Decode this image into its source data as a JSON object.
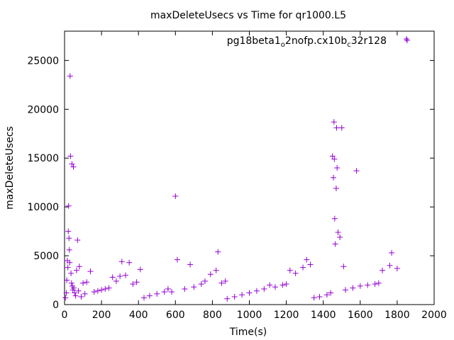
{
  "chart_data": {
    "type": "scatter",
    "title": "maxDeleteUsecs vs Time for qr1000.L5",
    "xlabel": "Time(s)",
    "ylabel": "maxDeleteUsecs",
    "xlim": [
      0,
      2000
    ],
    "ylim": [
      0,
      28000
    ],
    "xticks": [
      0,
      200,
      400,
      600,
      800,
      1000,
      1200,
      1400,
      1600,
      1800,
      2000
    ],
    "yticks": [
      0,
      5000,
      10000,
      15000,
      20000,
      25000
    ],
    "grid": false,
    "legend_position": "top-right",
    "color": "#9400d3",
    "series": [
      {
        "name_parts": [
          "pg18beta1",
          "o",
          "2nofp.cx10b",
          "c",
          "32r128"
        ],
        "points": [
          [
            5,
            700
          ],
          [
            10,
            1200
          ],
          [
            12,
            2500
          ],
          [
            15,
            4500
          ],
          [
            18,
            3800
          ],
          [
            20,
            7500
          ],
          [
            22,
            10100
          ],
          [
            24,
            6800
          ],
          [
            26,
            5600
          ],
          [
            28,
            4300
          ],
          [
            30,
            23400
          ],
          [
            32,
            15200
          ],
          [
            35,
            3200
          ],
          [
            38,
            2200
          ],
          [
            40,
            14400
          ],
          [
            42,
            1900
          ],
          [
            45,
            1500
          ],
          [
            48,
            14100
          ],
          [
            50,
            1700
          ],
          [
            55,
            1200
          ],
          [
            60,
            900
          ],
          [
            65,
            3500
          ],
          [
            70,
            6600
          ],
          [
            75,
            1400
          ],
          [
            80,
            3900
          ],
          [
            90,
            800
          ],
          [
            100,
            2200
          ],
          [
            110,
            1100
          ],
          [
            120,
            2300
          ],
          [
            140,
            3400
          ],
          [
            160,
            1300
          ],
          [
            180,
            1400
          ],
          [
            200,
            1500
          ],
          [
            220,
            1600
          ],
          [
            240,
            1700
          ],
          [
            260,
            2800
          ],
          [
            280,
            2400
          ],
          [
            300,
            2900
          ],
          [
            310,
            4400
          ],
          [
            330,
            3000
          ],
          [
            350,
            4300
          ],
          [
            370,
            2100
          ],
          [
            390,
            2300
          ],
          [
            410,
            3600
          ],
          [
            430,
            700
          ],
          [
            460,
            900
          ],
          [
            500,
            1100
          ],
          [
            540,
            1300
          ],
          [
            560,
            1600
          ],
          [
            580,
            1300
          ],
          [
            600,
            11100
          ],
          [
            610,
            4600
          ],
          [
            650,
            1600
          ],
          [
            680,
            4100
          ],
          [
            700,
            1800
          ],
          [
            740,
            2100
          ],
          [
            760,
            2400
          ],
          [
            790,
            3100
          ],
          [
            820,
            3500
          ],
          [
            830,
            5400
          ],
          [
            850,
            2200
          ],
          [
            870,
            2400
          ],
          [
            880,
            600
          ],
          [
            920,
            800
          ],
          [
            960,
            1000
          ],
          [
            1000,
            1200
          ],
          [
            1040,
            1400
          ],
          [
            1080,
            1600
          ],
          [
            1110,
            2000
          ],
          [
            1140,
            1800
          ],
          [
            1180,
            2000
          ],
          [
            1200,
            2100
          ],
          [
            1220,
            3500
          ],
          [
            1250,
            3200
          ],
          [
            1290,
            3800
          ],
          [
            1310,
            4600
          ],
          [
            1330,
            4100
          ],
          [
            1350,
            700
          ],
          [
            1380,
            800
          ],
          [
            1420,
            1000
          ],
          [
            1440,
            1200
          ],
          [
            1450,
            15200
          ],
          [
            1455,
            13000
          ],
          [
            1458,
            18700
          ],
          [
            1460,
            14900
          ],
          [
            1462,
            8800
          ],
          [
            1465,
            6200
          ],
          [
            1470,
            11900
          ],
          [
            1472,
            18100
          ],
          [
            1475,
            14000
          ],
          [
            1480,
            7400
          ],
          [
            1490,
            6900
          ],
          [
            1500,
            18100
          ],
          [
            1510,
            3900
          ],
          [
            1520,
            1500
          ],
          [
            1560,
            1700
          ],
          [
            1580,
            13700
          ],
          [
            1600,
            1900
          ],
          [
            1640,
            2000
          ],
          [
            1680,
            2100
          ],
          [
            1700,
            2200
          ],
          [
            1720,
            3500
          ],
          [
            1760,
            4000
          ],
          [
            1770,
            5300
          ],
          [
            1800,
            3700
          ],
          [
            1850,
            27200
          ]
        ]
      }
    ]
  }
}
